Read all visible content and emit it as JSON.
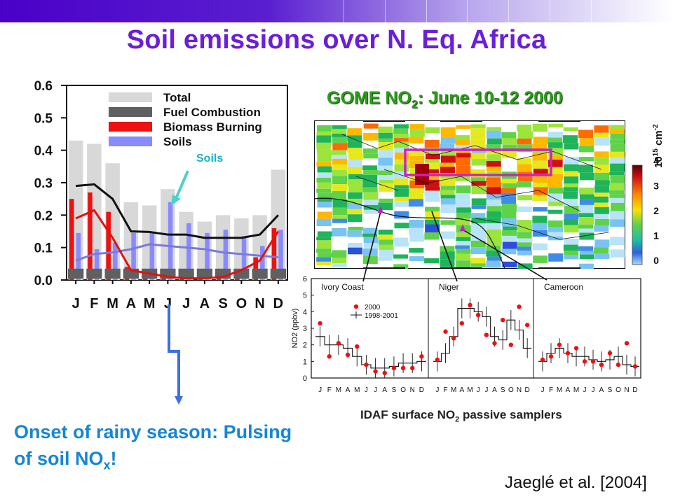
{
  "title": "Soil emissions over N. Eq. Africa",
  "gome": {
    "title_main": "GOME NO",
    "title_sub": "2",
    "title_rest": ": June 10-12 2000",
    "colorbar_unit_base": "10",
    "colorbar_unit_exp": "15",
    "colorbar_unit_rest": " cm",
    "colorbar_unit_exp2": "-2",
    "colorbar_ticks": [
      "4",
      "3",
      "2",
      "1",
      "0"
    ]
  },
  "soils_callout": "Soils",
  "onset": {
    "line1": "Onset of rainy season: Pulsing",
    "line2_pre": "of soil NO",
    "line2_sub": "x",
    "line2_post": "!"
  },
  "idaf": {
    "pre": "IDAF surface NO",
    "sub": "2",
    "post": " passive samplers"
  },
  "citation": "Jaeglé et al. [2004]",
  "chart_data": [
    {
      "type": "bar",
      "categories": [
        "J",
        "F",
        "M",
        "A",
        "M",
        "J",
        "J",
        "A",
        "S",
        "O",
        "N",
        "D"
      ],
      "ylim": [
        0,
        0.6
      ],
      "yticks": [
        "0.0",
        "0.1",
        "0.2",
        "0.3",
        "0.4",
        "0.5",
        "0.6"
      ],
      "legend": [
        "Total",
        "Fuel Combustion",
        "Biomass Burning",
        "Soils"
      ],
      "legend_position": "top",
      "series": [
        {
          "name": "Total",
          "color": "#d8d8d8",
          "bar_values": [
            0.43,
            0.42,
            0.36,
            0.24,
            0.23,
            0.28,
            0.21,
            0.18,
            0.2,
            0.19,
            0.2,
            0.34
          ],
          "line_values": [
            0.29,
            0.295,
            0.25,
            0.15,
            0.148,
            0.14,
            0.14,
            0.13,
            0.13,
            0.13,
            0.14,
            0.2
          ]
        },
        {
          "name": "Fuel Combustion",
          "color": "#606060",
          "bar_values": [
            0.035,
            0.035,
            0.035,
            0.035,
            0.035,
            0.035,
            0.035,
            0.035,
            0.035,
            0.035,
            0.035,
            0.035
          ],
          "line_values": [
            0.035,
            0.035,
            0.035,
            0.035,
            0.035,
            0.035,
            0.035,
            0.035,
            0.035,
            0.035,
            0.035,
            0.035
          ]
        },
        {
          "name": "Biomass Burning",
          "color": "#ee1111",
          "bar_values": [
            0.25,
            0.27,
            0.21,
            0.04,
            0.02,
            0.01,
            0.005,
            0.005,
            0.01,
            0.03,
            0.07,
            0.16
          ],
          "line_values": [
            0.19,
            0.215,
            0.13,
            0.03,
            0.02,
            0.01,
            0.005,
            0.005,
            0.01,
            0.03,
            0.06,
            0.15
          ]
        },
        {
          "name": "Soils",
          "color": "#8a8aff",
          "bar_values": [
            0.145,
            0.095,
            0.115,
            0.145,
            0.145,
            0.24,
            0.175,
            0.145,
            0.155,
            0.135,
            0.105,
            0.155
          ],
          "line_values": [
            0.06,
            0.08,
            0.085,
            0.095,
            0.11,
            0.105,
            0.1,
            0.095,
            0.085,
            0.08,
            0.075,
            0.07
          ]
        }
      ]
    },
    {
      "type": "line",
      "panels": [
        "Ivory Coast",
        "Niger",
        "Cameroon"
      ],
      "ylabel": "NO2 (ppbv)",
      "ylim": [
        0,
        6
      ],
      "yticks": [
        "0",
        "1",
        "2",
        "3",
        "4",
        "5",
        "6"
      ],
      "categories": [
        "J",
        "F",
        "M",
        "A",
        "M",
        "J",
        "J",
        "A",
        "S",
        "O",
        "N",
        "D"
      ],
      "legend": [
        "2000",
        "1998-2001"
      ],
      "legend_position": "top-left of first panel",
      "series": [
        {
          "name": "2000",
          "panel": "Ivory Coast",
          "values": [
            3.3,
            1.3,
            2.1,
            1.4,
            1.9,
            0.8,
            0.4,
            0.3,
            0.6,
            0.6,
            0.6,
            1.3
          ]
        },
        {
          "name": "1998-2001",
          "panel": "Ivory Coast",
          "values": [
            2.5,
            2.0,
            2.0,
            1.8,
            1.3,
            0.8,
            0.6,
            0.6,
            0.7,
            0.9,
            0.9,
            1.0
          ]
        },
        {
          "name": "2000",
          "panel": "Niger",
          "values": [
            1.1,
            2.8,
            2.4,
            3.3,
            4.4,
            3.8,
            2.6,
            2.1,
            3.5,
            2.0,
            4.3,
            3.2
          ]
        },
        {
          "name": "1998-2001",
          "panel": "Niger",
          "values": [
            1.0,
            1.5,
            2.5,
            4.2,
            4.2,
            4.0,
            3.7,
            2.5,
            2.3,
            3.5,
            2.9,
            1.8
          ]
        },
        {
          "name": "2000",
          "panel": "Cameroon",
          "values": [
            1.1,
            1.3,
            2.0,
            1.5,
            1.8,
            1.0,
            1.0,
            0.8,
            1.5,
            0.8,
            2.1,
            0.7
          ]
        },
        {
          "name": "1998-2001",
          "panel": "Cameroon",
          "values": [
            1.0,
            1.5,
            1.8,
            1.5,
            1.3,
            1.3,
            1.1,
            1.0,
            1.1,
            1.3,
            0.8,
            0.7
          ]
        }
      ]
    }
  ]
}
